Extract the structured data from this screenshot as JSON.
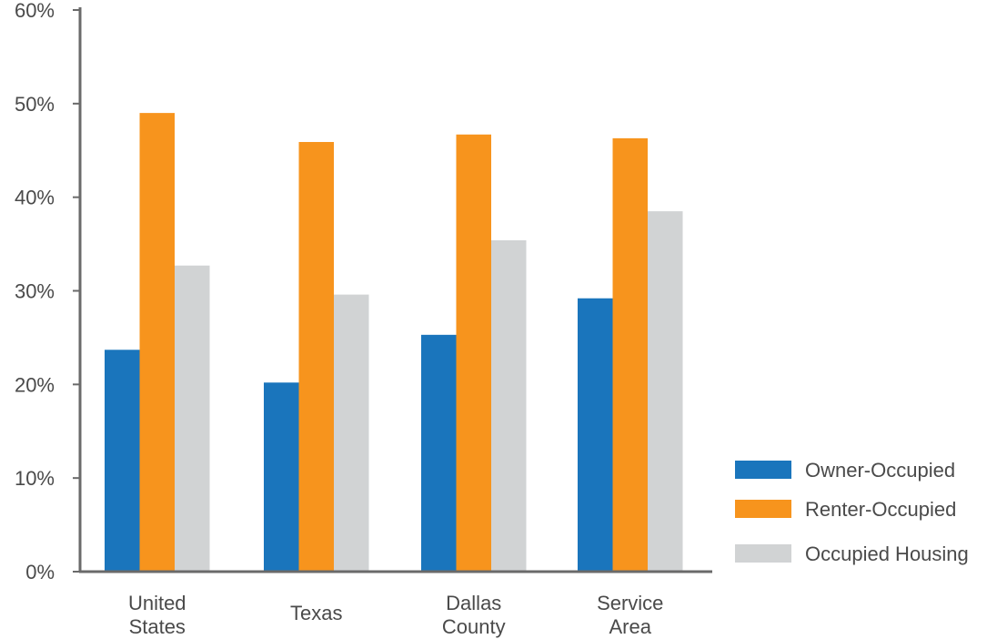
{
  "chart_data": {
    "type": "bar",
    "categories": [
      [
        "United",
        "States"
      ],
      [
        "Texas"
      ],
      [
        "Dallas",
        "County"
      ],
      [
        "Service",
        "Area"
      ]
    ],
    "series": [
      {
        "name": "Owner-Occupied",
        "color": "#1a75bc",
        "values": [
          23.7,
          20.2,
          25.3,
          29.2
        ]
      },
      {
        "name": "Renter-Occupied",
        "color": "#f7941d",
        "values": [
          49.0,
          45.9,
          46.7,
          46.3
        ]
      },
      {
        "name": "Occupied Housing",
        "color": "#d1d3d4",
        "values": [
          32.7,
          29.6,
          35.4,
          38.5
        ]
      }
    ],
    "ylim": [
      0,
      60
    ],
    "yticks": [
      0,
      10,
      20,
      30,
      40,
      50,
      60
    ],
    "ytick_labels": [
      "0%",
      "10%",
      "20%",
      "30%",
      "40%",
      "50%",
      "60%"
    ],
    "grid": false,
    "legend_position": "bottom-right",
    "title": "",
    "xlabel": "",
    "ylabel": ""
  }
}
